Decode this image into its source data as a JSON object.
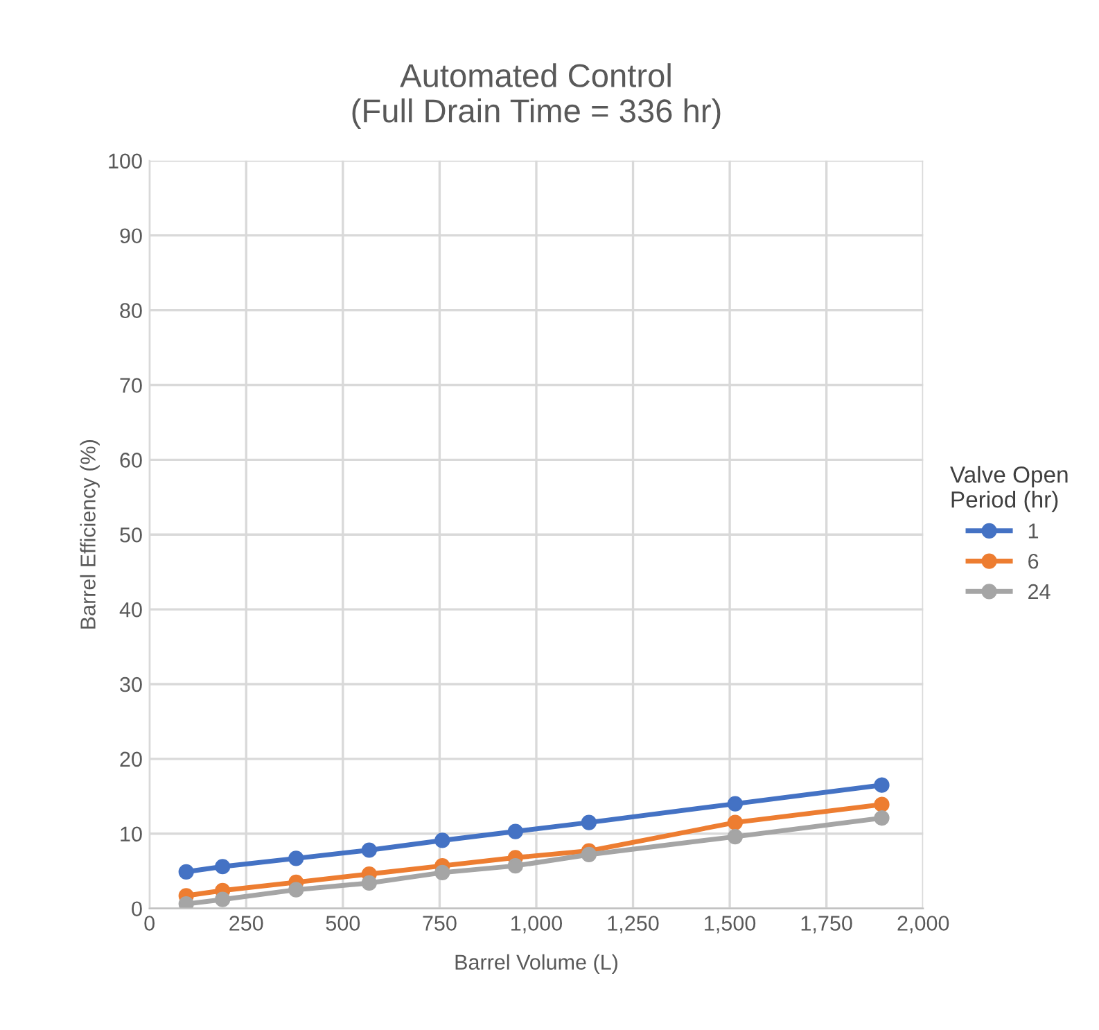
{
  "chart_data": {
    "type": "line",
    "title": "Automated Control\n(Full Drain Time = 336 hr)",
    "xlabel": "Barrel Volume (L)",
    "ylabel": "Barrel Efficiency (%)",
    "legend_title": "Valve Open\nPeriod (hr)",
    "x": [
      95,
      189,
      379,
      568,
      757,
      946,
      1136,
      1514,
      1893
    ],
    "series": [
      {
        "name": "1",
        "color": "#4472c4",
        "values": [
          4.9,
          5.6,
          6.7,
          7.8,
          9.1,
          10.3,
          11.5,
          14.0,
          16.5
        ]
      },
      {
        "name": "6",
        "color": "#ed7d31",
        "values": [
          1.7,
          2.4,
          3.5,
          4.6,
          5.7,
          6.8,
          7.7,
          11.5,
          13.9
        ]
      },
      {
        "name": "24",
        "color": "#a5a5a5",
        "values": [
          0.6,
          1.2,
          2.5,
          3.4,
          4.8,
          5.7,
          7.2,
          9.6,
          12.1
        ]
      }
    ],
    "xlim": [
      0,
      2000
    ],
    "xticks": [
      {
        "value": 0,
        "label": "0"
      },
      {
        "value": 250,
        "label": "250"
      },
      {
        "value": 500,
        "label": "500"
      },
      {
        "value": 750,
        "label": "750"
      },
      {
        "value": 1000,
        "label": "1,000"
      },
      {
        "value": 1250,
        "label": "1,250"
      },
      {
        "value": 1500,
        "label": "1,500"
      },
      {
        "value": 1750,
        "label": "1,750"
      },
      {
        "value": 2000,
        "label": "2,000"
      }
    ],
    "ylim": [
      0,
      100
    ],
    "yticks": [
      0,
      10,
      20,
      30,
      40,
      50,
      60,
      70,
      80,
      90,
      100
    ],
    "grid": true,
    "legend": "right",
    "marker": "circle",
    "line_style": "solid"
  }
}
